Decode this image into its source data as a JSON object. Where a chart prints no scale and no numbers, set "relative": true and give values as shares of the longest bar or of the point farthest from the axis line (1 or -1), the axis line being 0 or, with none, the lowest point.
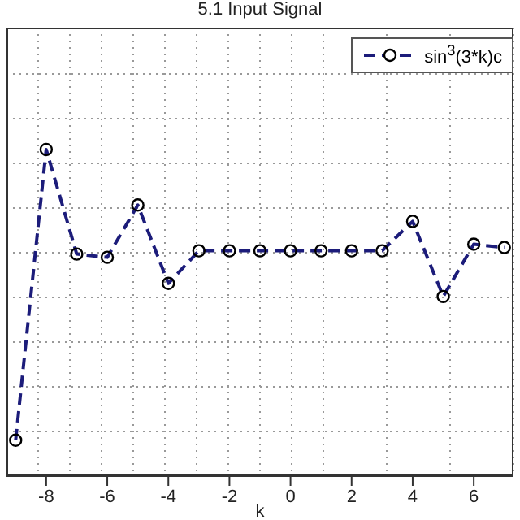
{
  "chart_data": {
    "type": "line",
    "title": "5.1 Input Signal",
    "xlabel": "k",
    "x": [
      -9,
      -8,
      -7,
      -6,
      -5,
      -4,
      -3,
      -2,
      -1,
      0,
      1,
      2,
      3,
      4,
      5,
      6,
      7
    ],
    "relative": true,
    "xlim": [
      -9.3,
      7.3
    ],
    "xticks": [
      -8,
      -6,
      -4,
      -2,
      0,
      2,
      4,
      6
    ],
    "grid": true,
    "legend": "top right",
    "marker": "circle",
    "line_style": "dashed",
    "series": [
      {
        "name": "sin$^{3}$(3*k)c",
        "color": "#1c1c7a",
        "values": [
          0.11,
          1,
          0.68,
          0.67,
          0.83,
          0.59,
          0.69,
          0.69,
          0.69,
          0.69,
          0.69,
          0.69,
          0.69,
          0.78,
          0.55,
          0.71,
          0.7
        ]
      }
    ]
  }
}
